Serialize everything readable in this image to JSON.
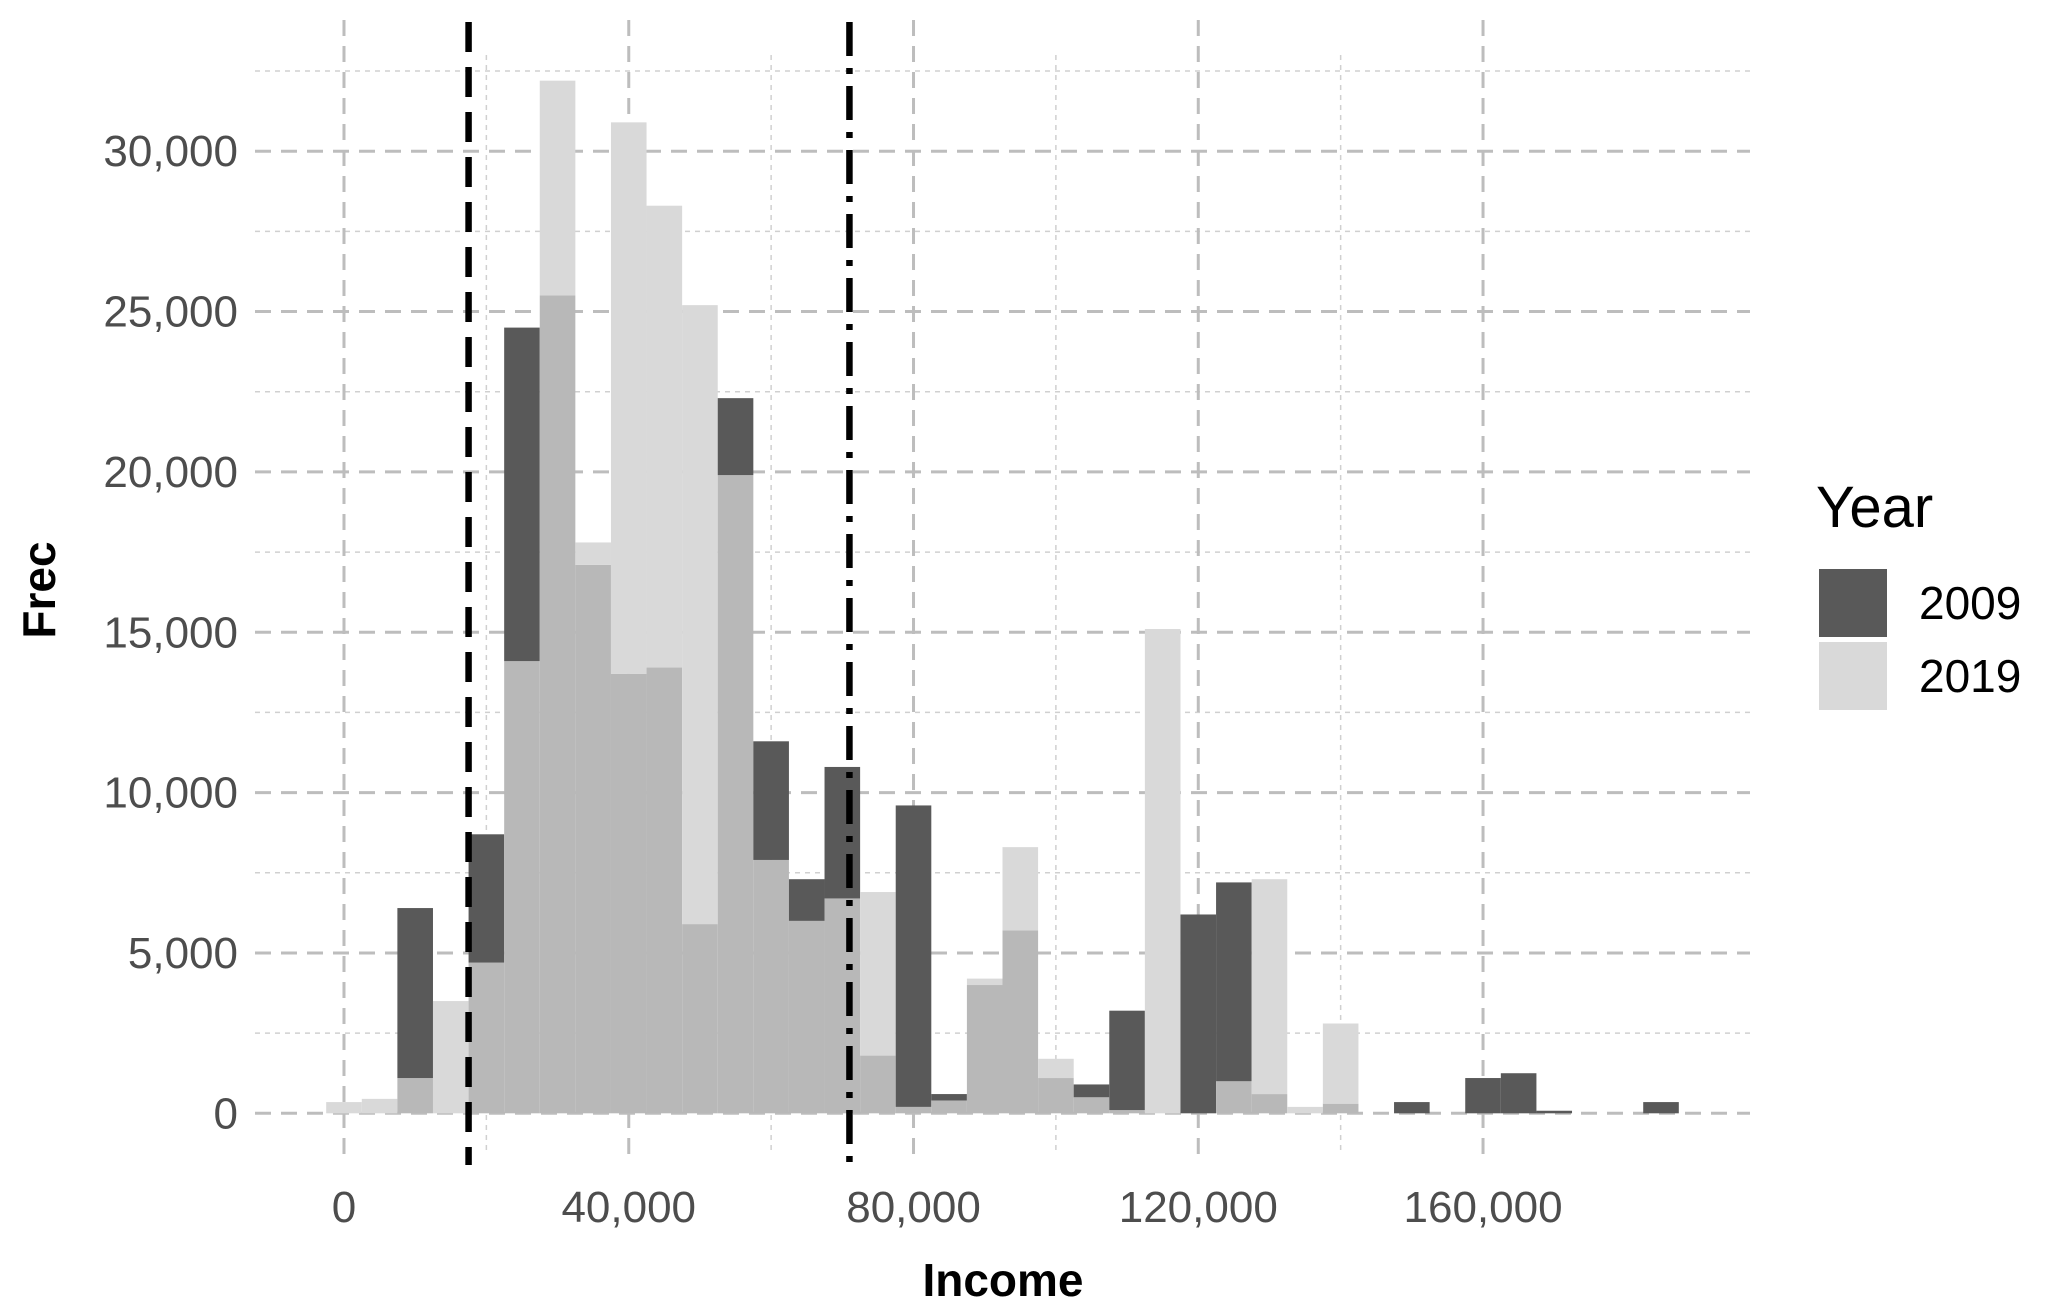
{
  "chart_data": {
    "type": "bar",
    "xlabel": "Income",
    "ylabel": "Frec",
    "xlim": [
      -12500,
      197500
    ],
    "ylim": [
      -1300,
      33000
    ],
    "x_ticks": [
      0,
      40000,
      80000,
      120000,
      160000
    ],
    "x_tick_labels": [
      "0",
      "40,000",
      "80,000",
      "120,000",
      "160,000"
    ],
    "y_ticks": [
      0,
      5000,
      10000,
      15000,
      20000,
      25000,
      30000
    ],
    "y_tick_labels": [
      "0",
      "5,000",
      "10,000",
      "15,000",
      "20,000",
      "25,000",
      "30,000"
    ],
    "bin_width": 5000,
    "bin_centers": [
      0,
      5000,
      10000,
      15000,
      20000,
      25000,
      30000,
      35000,
      40000,
      45000,
      50000,
      55000,
      60000,
      65000,
      70000,
      75000,
      80000,
      85000,
      90000,
      95000,
      100000,
      105000,
      110000,
      115000,
      120000,
      125000,
      130000,
      135000,
      140000,
      145000,
      150000,
      155000,
      160000,
      165000,
      170000,
      175000,
      180000,
      185000
    ],
    "series": [
      {
        "name": "2009",
        "color": "#595959",
        "values": [
          0,
          0,
          6400,
          0,
          8700,
          24500,
          25500,
          17100,
          13700,
          13900,
          5900,
          22300,
          11600,
          7300,
          10800,
          1800,
          9600,
          600,
          4000,
          5700,
          1100,
          900,
          3200,
          0,
          6200,
          7200,
          600,
          0,
          300,
          0,
          350,
          0,
          1100,
          1250,
          80,
          0,
          0,
          350
        ]
      },
      {
        "name": "2019",
        "color": "#d9d9d9",
        "values": [
          350,
          450,
          1100,
          3500,
          4700,
          14100,
          32200,
          17800,
          30900,
          28300,
          25200,
          19900,
          7900,
          6000,
          6700,
          6900,
          200,
          400,
          4200,
          8300,
          1700,
          500,
          100,
          15100,
          0,
          1000,
          7300,
          200,
          2800,
          0,
          0,
          0,
          0,
          0,
          0,
          0,
          0,
          0
        ]
      }
    ],
    "overlap_color": "#b8b8b8",
    "vlines": [
      {
        "x": 17500,
        "style": "dashed"
      },
      {
        "x": 71000,
        "style": "dashdot"
      }
    ],
    "grid": true,
    "legend": {
      "title": "Year",
      "placement": "right",
      "entries": [
        "2009",
        "2019"
      ]
    }
  }
}
